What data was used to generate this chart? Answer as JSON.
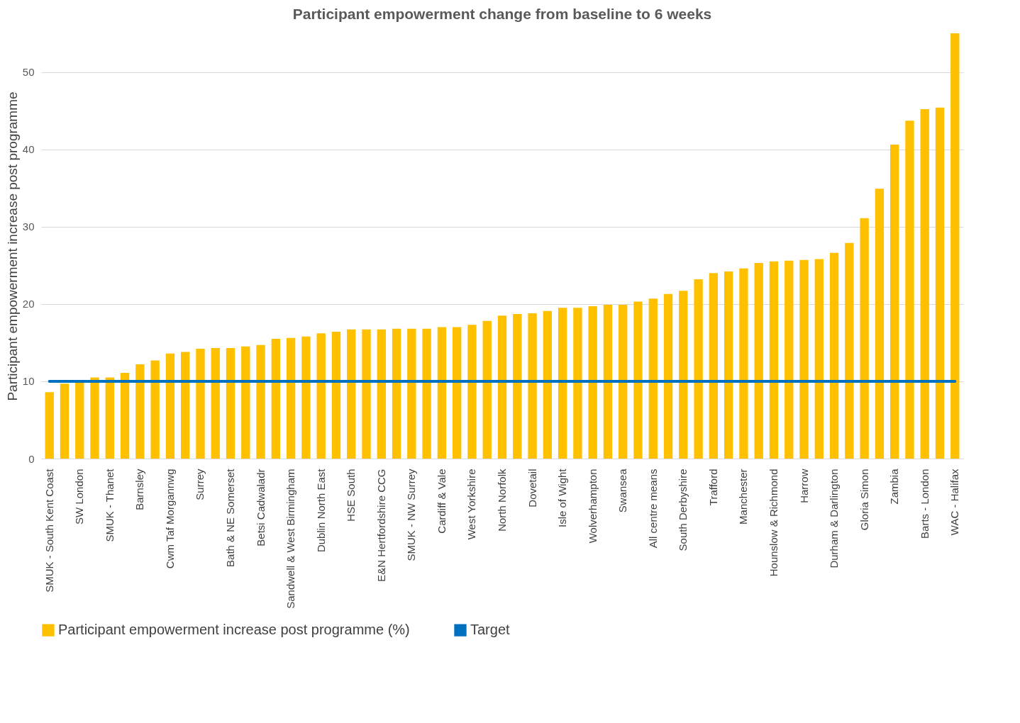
{
  "chart_data": {
    "type": "bar",
    "title": "Participant empowerment change from baseline to 6 weeks",
    "ylabel": "Participant empowerment increase post programme",
    "categories": [
      "SMUK - South Kent Coast",
      null,
      "SW London",
      null,
      "SMUK - Thanet",
      null,
      "Barnsley",
      null,
      "Cwm Taf Morgannwg",
      null,
      "Surrey",
      null,
      "Bath & NE Somerset",
      null,
      "Betsi Cadwaladr",
      null,
      "Sandwell & West Birmingham",
      null,
      "Dublin North East",
      null,
      "HSE South",
      null,
      "E&N Hertfordshire CCG",
      null,
      "SMUK - NW Surrey",
      null,
      "Cardiff & Vale",
      null,
      "West Yorkshire",
      null,
      "North Norfolk",
      null,
      "Dovetail",
      null,
      "Isle of Wight",
      null,
      "Wolverhampton",
      null,
      "Swansea",
      null,
      "All centre means",
      null,
      "South Derbyshire",
      null,
      "Trafford",
      null,
      "Manchester",
      null,
      "Hounslow & Richmond",
      null,
      "Harrow",
      null,
      "Durham & Darlington",
      null,
      "Gloria Simon",
      null,
      "Zambia",
      null,
      "Barts - London",
      null,
      "WAC - Halifax"
    ],
    "series": [
      {
        "name": "Participant empowerment increase post programme (%)",
        "color": "#ffc000",
        "values": [
          8.6,
          9.7,
          10.0,
          10.5,
          10.5,
          11.1,
          12.2,
          12.7,
          13.6,
          13.8,
          14.2,
          14.3,
          14.3,
          14.5,
          14.7,
          15.5,
          15.6,
          15.8,
          16.2,
          16.4,
          16.7,
          16.7,
          16.7,
          16.8,
          16.8,
          16.8,
          17.0,
          17.0,
          17.3,
          17.8,
          18.5,
          18.7,
          18.8,
          19.1,
          19.5,
          19.5,
          19.7,
          19.9,
          19.9,
          20.3,
          20.7,
          21.3,
          21.7,
          23.2,
          24.0,
          24.2,
          24.6,
          25.3,
          25.5,
          25.6,
          25.7,
          25.8,
          26.6,
          27.9,
          31.1,
          34.9,
          40.6,
          43.7,
          45.2,
          45.4,
          55.0
        ]
      },
      {
        "name": "Target",
        "type": "line",
        "color": "#0070c0",
        "values": [
          10,
          10,
          10,
          10,
          10,
          10,
          10,
          10,
          10,
          10,
          10,
          10,
          10,
          10,
          10,
          10,
          10,
          10,
          10,
          10,
          10,
          10,
          10,
          10,
          10,
          10,
          10,
          10,
          10,
          10,
          10,
          10,
          10,
          10,
          10,
          10,
          10,
          10,
          10,
          10,
          10,
          10,
          10,
          10,
          10,
          10,
          10,
          10,
          10,
          10,
          10,
          10,
          10,
          10,
          10,
          10,
          10,
          10,
          10,
          10,
          10
        ]
      }
    ],
    "ylim": [
      0,
      55
    ],
    "yticks": [
      0,
      10,
      20,
      30,
      40,
      50
    ],
    "grid": "y",
    "legend": "bottom",
    "marker": "none"
  }
}
